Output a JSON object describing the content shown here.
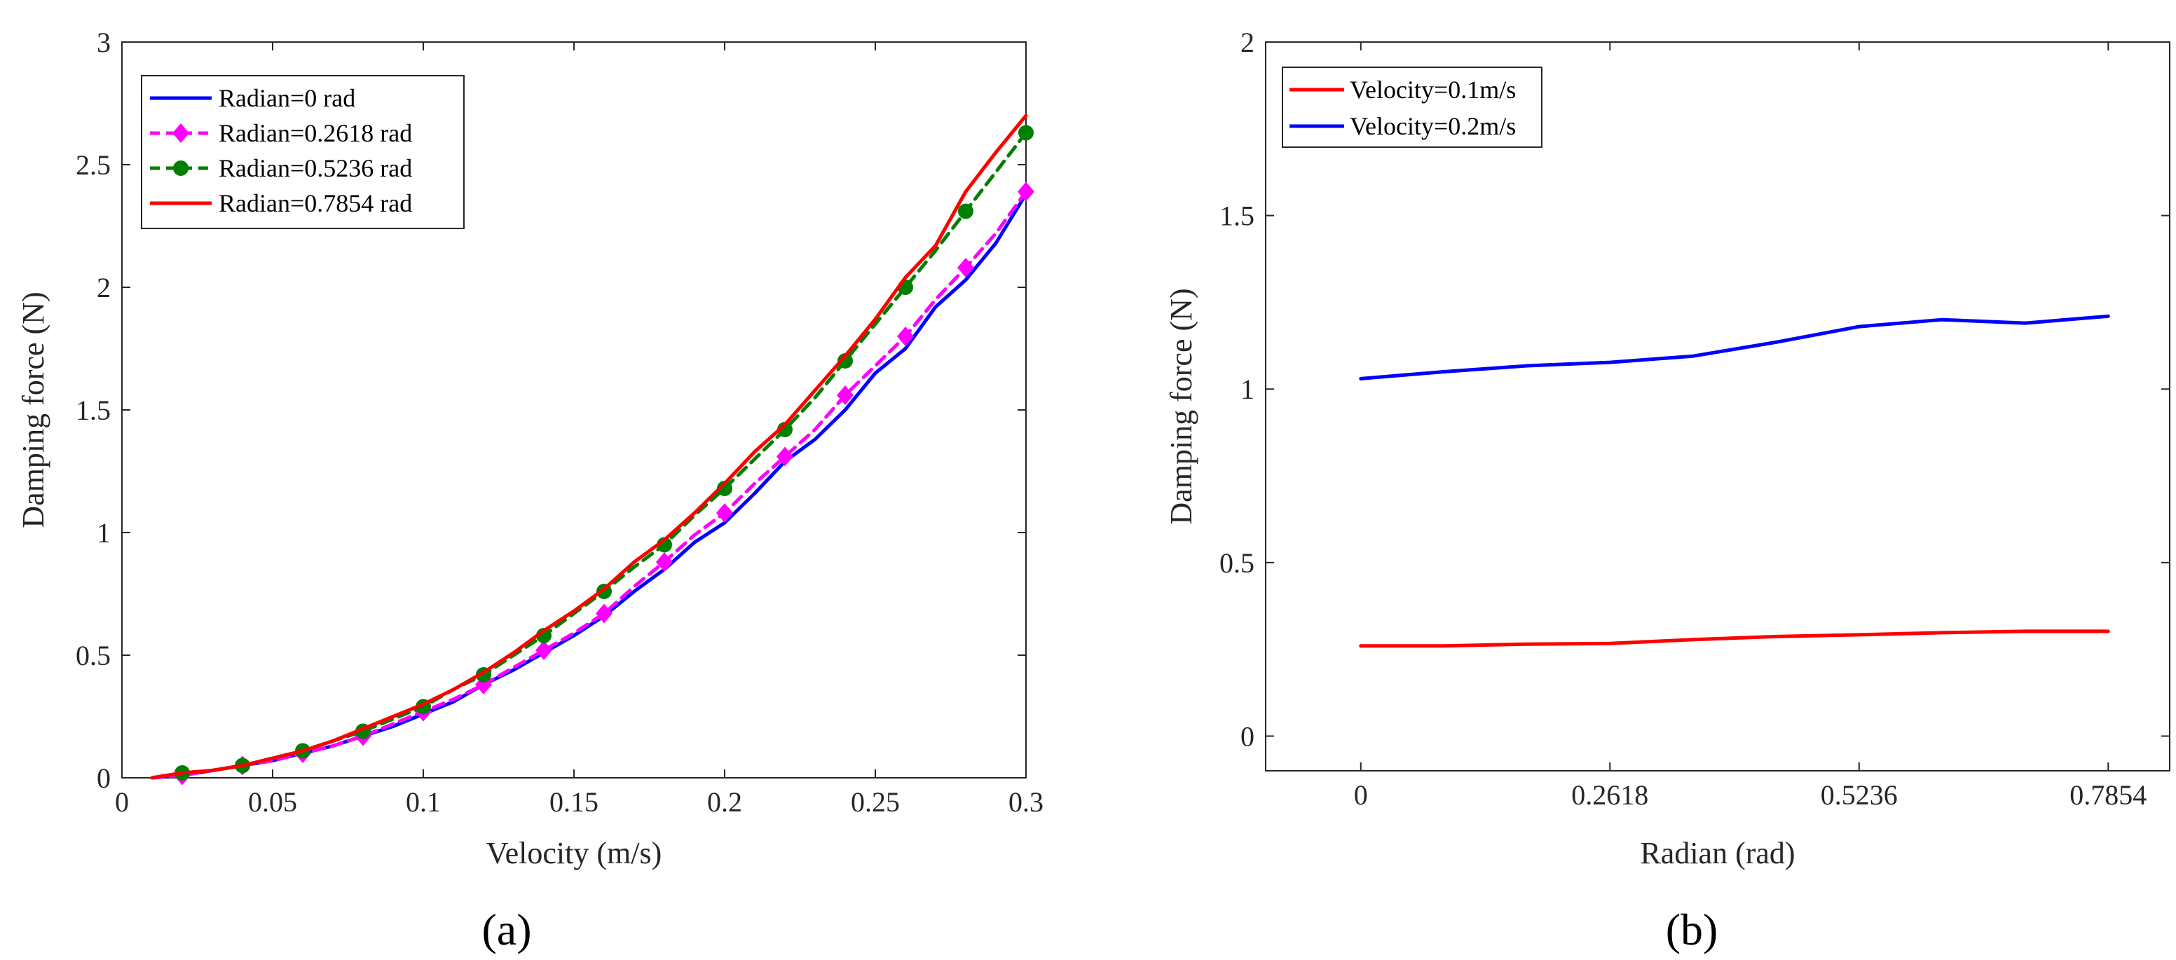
{
  "figure": {
    "panel_labels": [
      "(a)",
      "(b)"
    ]
  },
  "chart_data": [
    {
      "type": "line",
      "panel": "(a)",
      "title": "",
      "xlabel": "Velocity (m/s)",
      "ylabel": "Damping force (N)",
      "xlim": [
        0,
        0.3
      ],
      "ylim": [
        0,
        3
      ],
      "xticks": [
        0,
        0.05,
        0.1,
        0.15,
        0.2,
        0.25,
        0.3
      ],
      "xtick_labels": [
        "0",
        "0.05",
        "0.1",
        "0.15",
        "0.2",
        "0.25",
        "0.3"
      ],
      "yticks": [
        0,
        0.5,
        1,
        1.5,
        2,
        2.5,
        3
      ],
      "ytick_labels": [
        "0",
        "0.5",
        "1",
        "1.5",
        "2",
        "2.5",
        "3"
      ],
      "grid": false,
      "legend_position": "top-left",
      "series": [
        {
          "name": "Radian=0 rad",
          "color": "#0000ff",
          "dash": "solid",
          "marker": "none",
          "x": [
            0.01,
            0.02,
            0.03,
            0.04,
            0.05,
            0.06,
            0.07,
            0.08,
            0.09,
            0.1,
            0.11,
            0.12,
            0.13,
            0.14,
            0.15,
            0.16,
            0.17,
            0.18,
            0.19,
            0.2,
            0.21,
            0.22,
            0.23,
            0.24,
            0.25,
            0.26,
            0.27,
            0.28,
            0.29,
            0.3
          ],
          "y": [
            0.0,
            0.01,
            0.03,
            0.05,
            0.07,
            0.1,
            0.13,
            0.17,
            0.21,
            0.26,
            0.31,
            0.38,
            0.44,
            0.51,
            0.58,
            0.66,
            0.76,
            0.85,
            0.96,
            1.04,
            1.16,
            1.29,
            1.38,
            1.5,
            1.65,
            1.75,
            1.92,
            2.03,
            2.18,
            2.38
          ]
        },
        {
          "name": "Radian=0.2618 rad",
          "color": "#ff00ff",
          "dash": "dashed",
          "marker": "diamond",
          "x": [
            0.01,
            0.02,
            0.03,
            0.04,
            0.05,
            0.06,
            0.07,
            0.08,
            0.09,
            0.1,
            0.11,
            0.12,
            0.13,
            0.14,
            0.15,
            0.16,
            0.17,
            0.18,
            0.19,
            0.2,
            0.21,
            0.22,
            0.23,
            0.24,
            0.25,
            0.26,
            0.27,
            0.28,
            0.29,
            0.3
          ],
          "y": [
            0.0,
            0.01,
            0.03,
            0.05,
            0.07,
            0.1,
            0.13,
            0.17,
            0.22,
            0.27,
            0.32,
            0.38,
            0.45,
            0.52,
            0.59,
            0.67,
            0.78,
            0.88,
            0.99,
            1.08,
            1.2,
            1.31,
            1.42,
            1.56,
            1.68,
            1.8,
            1.95,
            2.08,
            2.22,
            2.39
          ]
        },
        {
          "name": "Radian=0.5236 rad",
          "color": "#007f00",
          "dash": "dashed",
          "marker": "circle",
          "x": [
            0.01,
            0.02,
            0.03,
            0.04,
            0.05,
            0.06,
            0.07,
            0.08,
            0.09,
            0.1,
            0.11,
            0.12,
            0.13,
            0.14,
            0.15,
            0.16,
            0.17,
            0.18,
            0.19,
            0.2,
            0.21,
            0.22,
            0.23,
            0.24,
            0.25,
            0.26,
            0.27,
            0.28,
            0.29,
            0.3
          ],
          "y": [
            0.0,
            0.02,
            0.03,
            0.05,
            0.08,
            0.11,
            0.15,
            0.19,
            0.24,
            0.29,
            0.36,
            0.42,
            0.5,
            0.58,
            0.67,
            0.76,
            0.86,
            0.95,
            1.07,
            1.18,
            1.3,
            1.42,
            1.55,
            1.7,
            1.85,
            2.0,
            2.15,
            2.31,
            2.47,
            2.63
          ]
        },
        {
          "name": "Radian=0.7854 rad",
          "color": "#ff0000",
          "dash": "solid",
          "marker": "none",
          "x": [
            0.01,
            0.02,
            0.03,
            0.04,
            0.05,
            0.06,
            0.07,
            0.08,
            0.09,
            0.1,
            0.11,
            0.12,
            0.13,
            0.14,
            0.15,
            0.16,
            0.17,
            0.18,
            0.19,
            0.2,
            0.21,
            0.22,
            0.23,
            0.24,
            0.25,
            0.26,
            0.27,
            0.28,
            0.29,
            0.3
          ],
          "y": [
            0.0,
            0.02,
            0.03,
            0.05,
            0.08,
            0.11,
            0.15,
            0.2,
            0.25,
            0.3,
            0.36,
            0.43,
            0.51,
            0.6,
            0.68,
            0.77,
            0.88,
            0.97,
            1.08,
            1.2,
            1.33,
            1.44,
            1.58,
            1.72,
            1.87,
            2.04,
            2.17,
            2.39,
            2.55,
            2.7
          ]
        }
      ]
    },
    {
      "type": "line",
      "panel": "(b)",
      "title": "",
      "xlabel": "Radian (rad)",
      "ylabel": "Damping force (N)",
      "xlim": [
        -0.1,
        0.85
      ],
      "ylim": [
        -0.1,
        2
      ],
      "xticks": [
        0,
        0.2618,
        0.5236,
        0.7854
      ],
      "xtick_labels": [
        "0",
        "0.2618",
        "0.5236",
        "0.7854"
      ],
      "yticks": [
        0,
        0.5,
        1,
        1.5,
        2
      ],
      "ytick_labels": [
        "0",
        "0.5",
        "1",
        "1.5",
        "2"
      ],
      "grid": false,
      "legend_position": "top-left",
      "series": [
        {
          "name": "Velocity=0.1m/s",
          "color": "#ff0000",
          "dash": "solid",
          "marker": "none",
          "x": [
            0,
            0.0873,
            0.1745,
            0.2618,
            0.3491,
            0.4363,
            0.5236,
            0.6109,
            0.6981,
            0.7854
          ],
          "y": [
            0.26,
            0.26,
            0.265,
            0.267,
            0.278,
            0.287,
            0.292,
            0.298,
            0.302,
            0.302
          ]
        },
        {
          "name": "Velocity=0.2m/s",
          "color": "#0000ff",
          "dash": "solid",
          "marker": "none",
          "x": [
            0,
            0.0873,
            0.1745,
            0.2618,
            0.3491,
            0.4363,
            0.5236,
            0.6109,
            0.6981,
            0.7854
          ],
          "y": [
            1.03,
            1.05,
            1.067,
            1.077,
            1.095,
            1.135,
            1.18,
            1.2,
            1.19,
            1.21
          ]
        }
      ]
    }
  ]
}
